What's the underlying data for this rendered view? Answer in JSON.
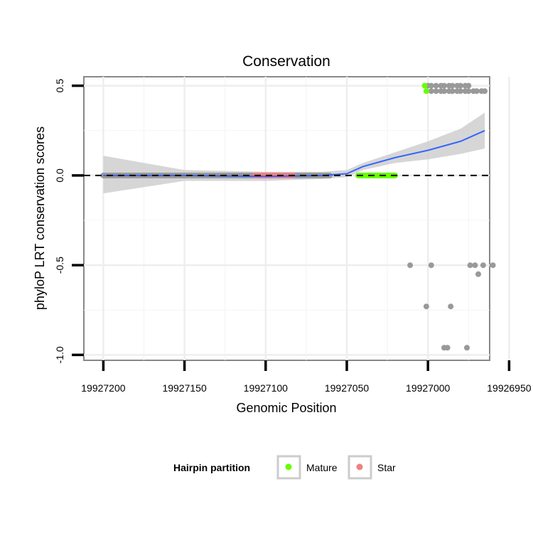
{
  "chart_data": {
    "type": "scatter",
    "title": "Conservation",
    "xlabel": "Genomic Position",
    "ylabel": "phyloP LRT conservation scores",
    "x_reversed": true,
    "xlim": [
      19927212,
      19926962
    ],
    "ylim": [
      -1.03,
      0.55
    ],
    "x_ticks": [
      19927200,
      19927150,
      19927100,
      19927050,
      19927000,
      19926950
    ],
    "x_tick_labels": [
      "19927200",
      "19927150",
      "19927100",
      "19927050",
      "19927000",
      "19926950"
    ],
    "y_ticks": [
      0.5,
      0.0,
      -0.5,
      -1.0
    ],
    "y_tick_labels": [
      "0.5",
      "0.0",
      "-0.5",
      "-1.0"
    ],
    "reference_line": {
      "y": 0,
      "style": "dashed",
      "color": "#000000"
    },
    "legend": {
      "title": "Hairpin partition",
      "position": "bottom",
      "entries": [
        {
          "label": "Mature",
          "color": "#66ff00"
        },
        {
          "label": "Star",
          "color": "#f08080"
        }
      ]
    },
    "series": [
      {
        "name": "Other",
        "color": "#999999",
        "x_range_zero": [
          19927060,
          19927200
        ],
        "points": [
          [
            19927000,
            0.5
          ],
          [
            19926998,
            0.5
          ],
          [
            19926995,
            0.5
          ],
          [
            19926992,
            0.5
          ],
          [
            19926990,
            0.5
          ],
          [
            19926987,
            0.5
          ],
          [
            19926985,
            0.5
          ],
          [
            19926982,
            0.5
          ],
          [
            19926980,
            0.5
          ],
          [
            19926977,
            0.5
          ],
          [
            19926975,
            0.5
          ],
          [
            19926998,
            0.47
          ],
          [
            19926995,
            0.47
          ],
          [
            19926992,
            0.47
          ],
          [
            19926990,
            0.47
          ],
          [
            19926987,
            0.47
          ],
          [
            19926985,
            0.47
          ],
          [
            19926982,
            0.47
          ],
          [
            19926980,
            0.47
          ],
          [
            19926977,
            0.47
          ],
          [
            19926975,
            0.47
          ],
          [
            19926972,
            0.47
          ],
          [
            19926970,
            0.47
          ],
          [
            19926967,
            0.47
          ],
          [
            19926965,
            0.47
          ],
          [
            19927011,
            -0.5
          ],
          [
            19926998,
            -0.5
          ],
          [
            19926974,
            -0.5
          ],
          [
            19926971,
            -0.5
          ],
          [
            19926966,
            -0.5
          ],
          [
            19926960,
            -0.5
          ],
          [
            19926969,
            -0.55
          ],
          [
            19927001,
            -0.73
          ],
          [
            19926986,
            -0.73
          ],
          [
            19926990,
            -0.96
          ],
          [
            19926988,
            -0.96
          ],
          [
            19926976,
            -0.96
          ]
        ]
      },
      {
        "name": "Mature",
        "color": "#66ff00",
        "x_range_zero": [
          19927020,
          19927043
        ],
        "points": [
          [
            19927002,
            0.5
          ],
          [
            19927001,
            0.47
          ]
        ]
      },
      {
        "name": "Star",
        "color": "#f08080",
        "x_range_zero": [
          19927083,
          19927107
        ],
        "points": []
      }
    ],
    "smooth": {
      "method": "loess",
      "color": "#3366ff",
      "band_color": "#cccccc",
      "x": [
        19927200,
        19927150,
        19927100,
        19927065,
        19927050,
        19927040,
        19927020,
        19927000,
        19926980,
        19926965
      ],
      "y": [
        0.0,
        0.0,
        -0.005,
        0.0,
        0.01,
        0.05,
        0.1,
        0.14,
        0.19,
        0.25
      ],
      "upper": [
        0.11,
        0.03,
        0.02,
        0.02,
        0.03,
        0.07,
        0.13,
        0.19,
        0.26,
        0.35
      ],
      "lower": [
        -0.1,
        -0.03,
        -0.03,
        -0.02,
        -0.01,
        0.03,
        0.07,
        0.09,
        0.12,
        0.15
      ]
    }
  }
}
